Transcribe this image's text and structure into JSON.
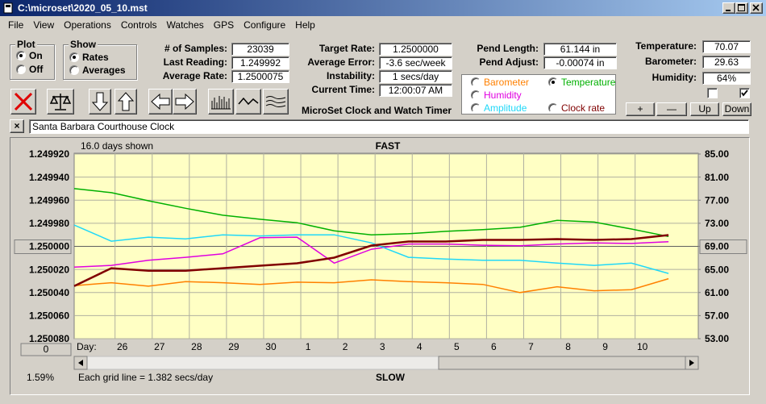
{
  "window": {
    "title": "C:\\microset\\2020_05_10.mst"
  },
  "menu": [
    "File",
    "View",
    "Operations",
    "Controls",
    "Watches",
    "GPS",
    "Configure",
    "Help"
  ],
  "plot_group": {
    "title": "Plot",
    "options": [
      "On",
      "Off"
    ],
    "selected": 0
  },
  "show_group": {
    "title": "Show",
    "options": [
      "Rates",
      "Averages"
    ],
    "selected": 0
  },
  "readouts": [
    [
      {
        "label": "# of Samples:",
        "value": "23039"
      },
      {
        "label": "Last Reading:",
        "value": "1.249992"
      },
      {
        "label": "Average Rate:",
        "value": "1.2500075"
      }
    ],
    [
      {
        "label": "Target Rate:",
        "value": "1.2500000"
      },
      {
        "label": "Average Error:",
        "value": "-3.6 sec/week"
      },
      {
        "label": "Instability:",
        "value": "1 secs/day"
      },
      {
        "label": "Current Time:",
        "value": "12:00:07 AM"
      }
    ],
    [
      {
        "label": "Pend Length:",
        "value": "61.144 in"
      },
      {
        "label": "Pend Adjust:",
        "value": "-0.00074 in"
      }
    ],
    [
      {
        "label": "Temperature:",
        "value": "70.07"
      },
      {
        "label": "Barometer:",
        "value": "29.63"
      },
      {
        "label": "Humidity:",
        "value": "64%"
      }
    ]
  ],
  "checkboxes": [
    false,
    true
  ],
  "adjust_buttons": [
    "+",
    "—",
    "Up",
    "Down"
  ],
  "app_name": "MicroSet Clock and Watch Timer",
  "clock_name": "Santa Barbara Courthouse Clock",
  "chart_data": {
    "type": "line",
    "days_shown": "16.0 days shown",
    "top_label": "FAST",
    "bottom_label": "SLOW",
    "grid_note": "Each grid line = 1.382 secs/day",
    "amplitude_readout": "1.59%",
    "x_label": "Day:",
    "offset_button": "0",
    "grid": true,
    "trace_selected": 1,
    "xlim": [
      0,
      16.8
    ],
    "xticks": [
      {
        "value": 1.1,
        "label": "26"
      },
      {
        "value": 2.1,
        "label": "27"
      },
      {
        "value": 3.1,
        "label": "28"
      },
      {
        "value": 4.1,
        "label": "29"
      },
      {
        "value": 5.1,
        "label": "30"
      },
      {
        "value": 6.1,
        "label": "1"
      },
      {
        "value": 7.1,
        "label": "2"
      },
      {
        "value": 8.1,
        "label": "3"
      },
      {
        "value": 9.1,
        "label": "4"
      },
      {
        "value": 10.1,
        "label": "5"
      },
      {
        "value": 11.1,
        "label": "6"
      },
      {
        "value": 12.1,
        "label": "7"
      },
      {
        "value": 13.1,
        "label": "8"
      },
      {
        "value": 14.1,
        "label": "9"
      },
      {
        "value": 15.1,
        "label": "10"
      }
    ],
    "ylim": [
      1.25008,
      1.24992
    ],
    "yticks": [
      {
        "value": 1.24992,
        "label": "1.249920"
      },
      {
        "value": 1.24994,
        "label": "1.249940"
      },
      {
        "value": 1.24996,
        "label": "1.249960"
      },
      {
        "value": 1.24998,
        "label": "1.249980"
      },
      {
        "value": 1.25,
        "label": "1.250000"
      },
      {
        "value": 1.25002,
        "label": "1.250020"
      },
      {
        "value": 1.25004,
        "label": "1.250040"
      },
      {
        "value": 1.25006,
        "label": "1.250060"
      },
      {
        "value": 1.25008,
        "label": "1.250080"
      }
    ],
    "y2lim": [
      53,
      85
    ],
    "y2ticks": [
      {
        "value": 85,
        "label": "85.00"
      },
      {
        "value": 81,
        "label": "81.00"
      },
      {
        "value": 77,
        "label": "77.00"
      },
      {
        "value": 73,
        "label": "73.00"
      },
      {
        "value": 69,
        "label": "69.00"
      },
      {
        "value": 65,
        "label": "65.00"
      },
      {
        "value": 61,
        "label": "61.00"
      },
      {
        "value": 57,
        "label": "57.00"
      },
      {
        "value": 53,
        "label": "53.00"
      }
    ],
    "x": [
      0,
      1,
      2,
      3,
      4,
      5,
      6,
      7,
      8,
      9,
      10,
      11,
      12,
      13,
      14,
      15,
      16
    ],
    "series": [
      {
        "name": "Barometer",
        "color": "#ff8000",
        "axis": "y2",
        "values": [
          62.2,
          62.7,
          62.1,
          62.9,
          62.7,
          62.4,
          62.8,
          62.7,
          63.2,
          62.9,
          62.7,
          62.4,
          61.0,
          62.0,
          61.3,
          61.5,
          63.4
        ]
      },
      {
        "name": "Temperature",
        "color": "#00b000",
        "axis": "y2",
        "values": [
          79.0,
          78.3,
          76.9,
          75.6,
          74.4,
          73.7,
          73.1,
          71.7,
          71.0,
          71.2,
          71.6,
          71.9,
          72.3,
          73.5,
          73.2,
          72.0,
          70.7
        ]
      },
      {
        "name": "Humidity",
        "color": "#e000e0",
        "axis": "y2",
        "values": [
          65.4,
          65.7,
          66.6,
          67.1,
          67.7,
          70.5,
          70.6,
          66.1,
          68.5,
          69.4,
          69.4,
          69.2,
          69.1,
          69.4,
          69.6,
          69.5,
          69.8
        ]
      },
      {
        "name": "Amplitude",
        "color": "#20d8f8",
        "axis": "y2",
        "values": [
          72.7,
          69.9,
          70.6,
          70.3,
          71.0,
          70.8,
          71.0,
          71.0,
          69.6,
          67.1,
          66.8,
          66.6,
          66.6,
          66.1,
          65.7,
          66.1,
          64.3
        ]
      },
      {
        "name": "Clock rate",
        "color": "#800000",
        "axis": "y",
        "values": [
          1.2500344,
          1.2500189,
          1.2500211,
          1.2500211,
          1.2500189,
          1.2500168,
          1.2500147,
          1.2500098,
          1.2499993,
          1.2499958,
          1.2499958,
          1.2499944,
          1.2499944,
          1.2499937,
          1.2499944,
          1.2499937,
          1.2499902
        ]
      }
    ]
  }
}
